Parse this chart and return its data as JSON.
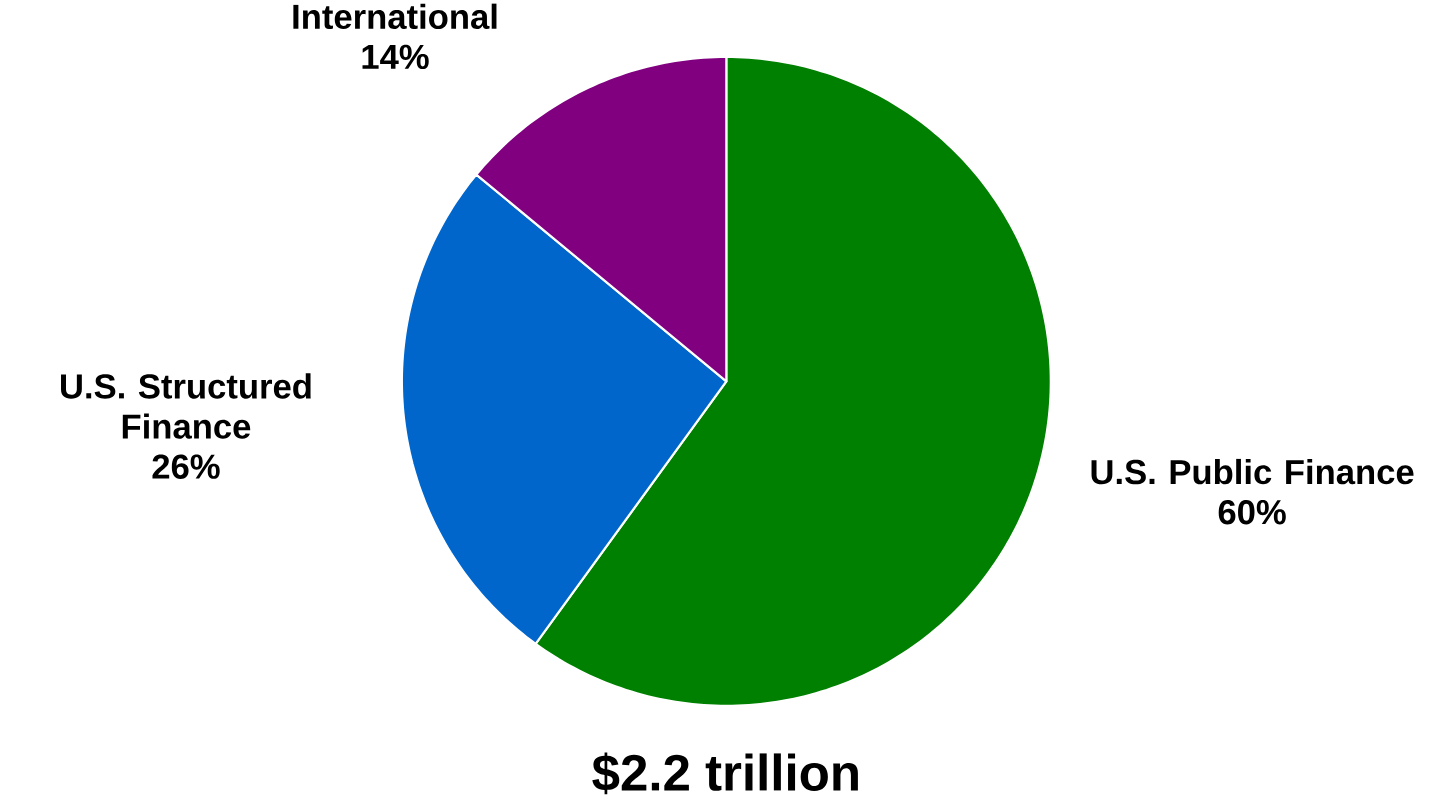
{
  "chart_data": {
    "type": "pie",
    "title": "$2.2 trillion",
    "categories": [
      "U.S. Public Finance",
      "U.S. Structured Finance",
      "International"
    ],
    "values": [
      60,
      26,
      14
    ],
    "colors": [
      "#008000",
      "#0066cc",
      "#800080"
    ],
    "value_labels": [
      "60%",
      "26%",
      "14%"
    ]
  }
}
